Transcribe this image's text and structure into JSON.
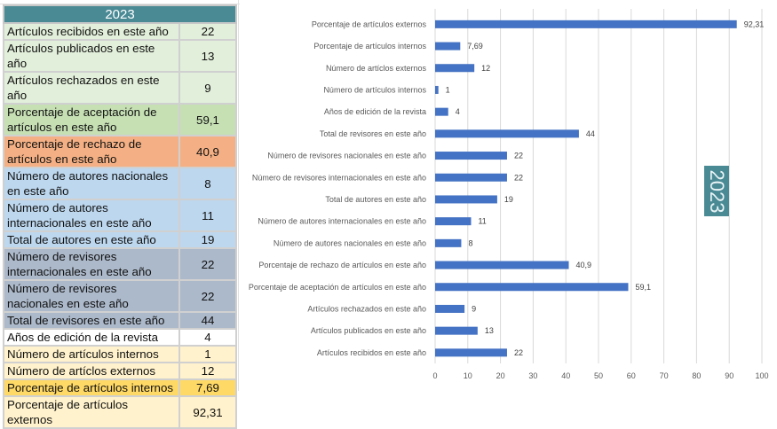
{
  "table": {
    "header": "2023",
    "rows": [
      {
        "label": "Artículos recibidos en este año",
        "value": "22",
        "bg": "#e2efda",
        "tall": false
      },
      {
        "label": "Artículos publicados en este año",
        "value": "13",
        "bg": "#e2efda",
        "tall": false
      },
      {
        "label": "Artículos rechazados en este año",
        "value": "9",
        "bg": "#e2efda",
        "tall": false
      },
      {
        "label": "Porcentaje de aceptación de artículos en este año",
        "value": "59,1",
        "bg": "#c6e0b4",
        "tall": true
      },
      {
        "label": "Porcentaje de rechazo de artículos en este año",
        "value": "40,9",
        "bg": "#f4b084",
        "tall": true
      },
      {
        "label": "Número de autores nacionales en este año",
        "value": "8",
        "bg": "#bdd7ee",
        "tall": true
      },
      {
        "label": "Número de autores internacionales en este año",
        "value": "11",
        "bg": "#bdd7ee",
        "tall": true
      },
      {
        "label": "Total de autores en este año",
        "value": "19",
        "bg": "#bdd7ee",
        "tall": false
      },
      {
        "label": "Número de revisores internacionales en este año",
        "value": "22",
        "bg": "#acb9ca",
        "tall": true
      },
      {
        "label": "Número de revisores nacionales en este año",
        "value": "22",
        "bg": "#acb9ca",
        "tall": true
      },
      {
        "label": "Total de revisores en este año",
        "value": "44",
        "bg": "#acb9ca",
        "tall": false
      },
      {
        "label": "Años de edición de la revista",
        "value": "4",
        "bg": "#ffffff",
        "tall": false
      },
      {
        "label": "Número de artículos internos",
        "value": "1",
        "bg": "#fff2cc",
        "tall": false
      },
      {
        "label": "Número de artíclos externos",
        "value": "12",
        "bg": "#fff2cc",
        "tall": false
      },
      {
        "label": "Porcentaje de artículos internos",
        "value": "7,69",
        "bg": "#ffd966",
        "tall": false
      },
      {
        "label": "Porcentaje de artículos externos",
        "value": "92,31",
        "bg": "#fff2cc",
        "tall": false
      }
    ]
  },
  "chart_data": {
    "type": "bar",
    "orientation": "horizontal",
    "title": "2023",
    "title_placement": "right, vertical",
    "bar_color": "#4472c4",
    "xlabel": "",
    "ylabel": "",
    "xlim": [
      0,
      100
    ],
    "xticks": [
      0,
      10,
      20,
      30,
      40,
      50,
      60,
      70,
      80,
      90,
      100
    ],
    "grid": "vertical",
    "legend": "none",
    "categories": [
      "Porcentaje de artículos externos",
      "Porcentaje de artículos internos",
      "Número de artíclos externos",
      "Número de artículos internos",
      "Años de edición de la revista",
      "Total de revisores en este año",
      "Número de revisores nacionales en este año",
      "Número de revisores internacionales en este año",
      "Total de autores en este año",
      "Número de autores internacionales en este año",
      "Número de autores nacionales en este año",
      "Porcentaje de rechazo de artículos en este año",
      "Porcentaje de aceptación de artículos en este año",
      "Artículos rechazados en este año",
      "Artículos publicados en este año",
      "Artículos recibidos en este año"
    ],
    "values": [
      92.31,
      7.69,
      12,
      1,
      4,
      44,
      22,
      22,
      19,
      11,
      8,
      40.9,
      59.1,
      9,
      13,
      22
    ],
    "value_labels": [
      "92,31",
      "7,69",
      "12",
      "1",
      "4",
      "44",
      "22",
      "22",
      "19",
      "11",
      "8",
      "40,9",
      "59,1",
      "9",
      "13",
      "22"
    ]
  }
}
